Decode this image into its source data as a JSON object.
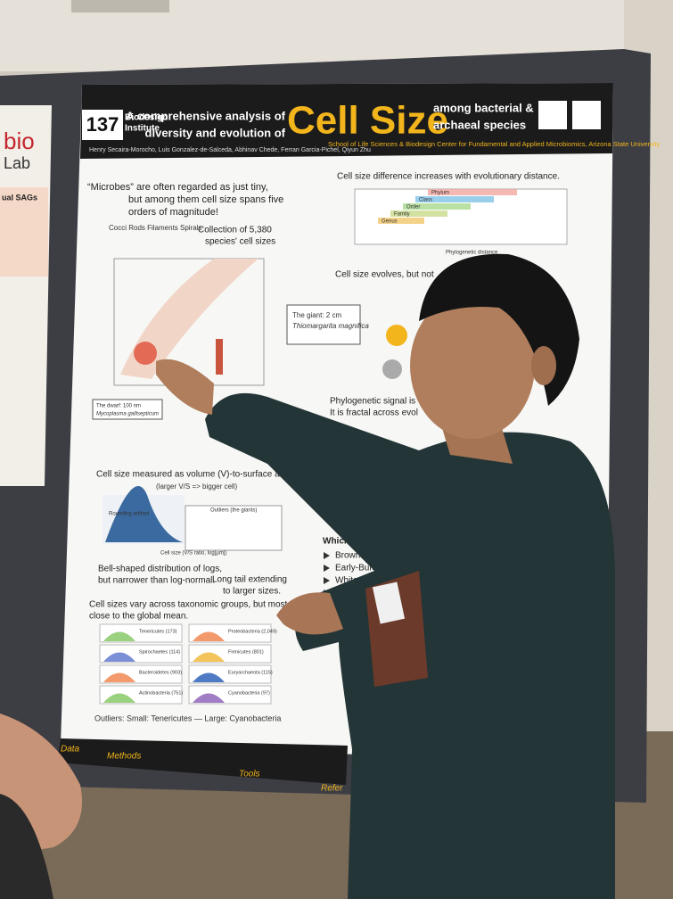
{
  "poster": {
    "number": "137",
    "institute": [
      "Biodesign",
      "Institute"
    ],
    "title": {
      "line1": "A comprehensive analysis of",
      "line2": "diversity and evolution of",
      "main": "Cell Size",
      "right1": "among bacterial &",
      "right2": "archaeal species"
    },
    "authors": "Henry Secaira-Morocho, Luis Gonzalez-de-Salceda, Abhinav Chede, Ferran Garcia-Pichel, Qiyun Zhu",
    "affiliation": "School of Life Sciences & Biodesign Center for Fundamental and Applied Microbiomics, Arizona State University",
    "intro": [
      "“Microbes” are often regarded as just tiny,",
      "but among them cell size spans five",
      "orders of magnitude!"
    ],
    "collection": [
      "Collection of 5,380",
      "species' cell sizes"
    ],
    "morphs": "Cocci  Rods  Filaments  Spirals",
    "giant": [
      "The giant: 2 cm",
      "Thiomargarita magnifica"
    ],
    "dwarf": [
      "The dwarf: 100 nm",
      "Mycoplasma gallisepticum"
    ],
    "difference": "Cell size difference increases with evolutionary distance.",
    "ranks": [
      "Phylum",
      "Class",
      "Order",
      "Family",
      "Genus"
    ],
    "xaxis": "Phylogenetic distance",
    "evolves": "Cell size evolves, but not",
    "signal": [
      "Phylogenetic signal is",
      "It is fractal across evol"
    ],
    "measure": [
      "Cell size measured as volume (V)-to-surface area (S) ratio",
      "(larger V/S => bigger cell)"
    ],
    "hist": [
      "Rounding artifact",
      "Outliers (the giants)",
      "Cell size (V/S ratio, log[μm])"
    ],
    "bell": [
      "Bell-shaped distribution of logs,",
      "but narrower than log-normal."
    ],
    "tail": [
      "Long tail extending",
      "to larger sizes."
    ],
    "vary": [
      "Cell sizes vary across taxonomic groups, but most are",
      "close to the global mean."
    ],
    "groups": [
      "Tenericutes (173)",
      "Proteobacteria (2,049)",
      "Spirochaetes (114)",
      "Firmicutes (801)",
      "Bacteroidetes (903)",
      "Euryarchaeota (115)",
      "Actinobacteria (751)",
      "Cyanobacteria (97)"
    ],
    "outliers": "Outliers: Small: Tenericutes — Large: Cyanobacteria",
    "model": "Which model exp",
    "models": [
      "Brownian mo",
      "Early-Burst:",
      "White-noise",
      "Ornstein-U"
    ],
    "footer": [
      "Data",
      "Methods",
      "Tools",
      "Refer"
    ]
  },
  "side_poster": {
    "lab": [
      "bio",
      "Lab"
    ],
    "heading": "ual SAGs"
  }
}
